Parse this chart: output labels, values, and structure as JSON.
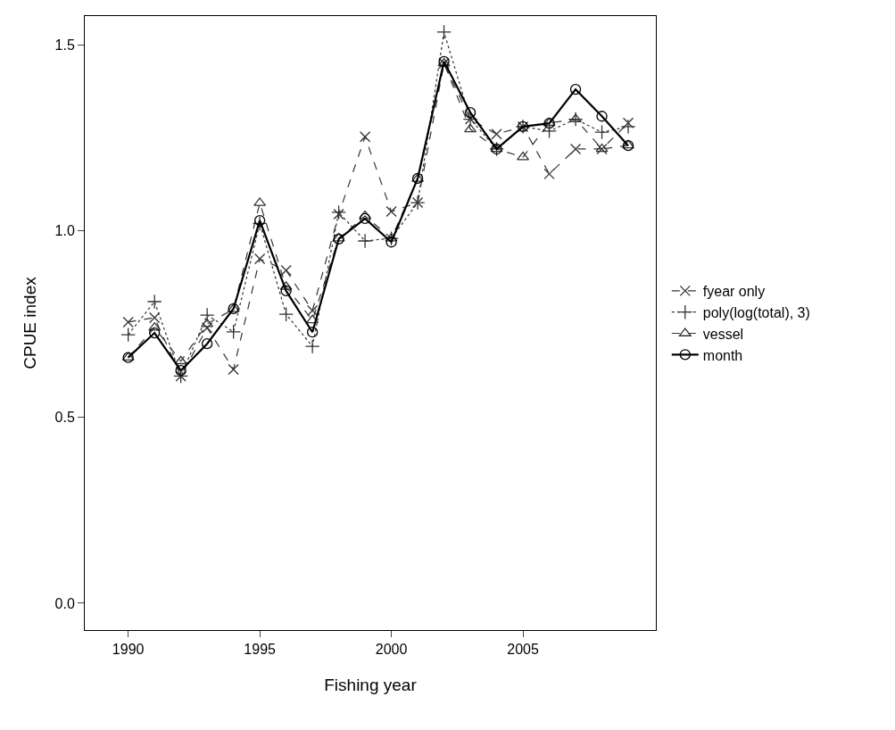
{
  "chart_data": {
    "type": "line",
    "xlabel": "Fishing year",
    "ylabel": "CPUE index",
    "x": [
      1990,
      1991,
      1992,
      1993,
      1994,
      1995,
      1996,
      1997,
      1998,
      1999,
      2000,
      2001,
      2002,
      2003,
      2004,
      2005,
      2006,
      2007,
      2008,
      2009
    ],
    "series": [
      {
        "name": "fyear only",
        "color": "#333333",
        "marker": "x",
        "line_style": "dashed",
        "values": [
          0.755,
          0.767,
          0.61,
          0.74,
          0.628,
          0.925,
          0.894,
          0.786,
          1.045,
          1.253,
          1.052,
          1.076,
          1.45,
          1.3,
          1.26,
          1.28,
          1.153,
          1.22,
          1.22,
          1.29
        ]
      },
      {
        "name": "poly(log(total), 3)",
        "color": "#333333",
        "marker": "cross",
        "line_style": "dotted",
        "values": [
          0.721,
          0.81,
          0.61,
          0.774,
          0.729,
          1.02,
          0.776,
          0.69,
          1.05,
          0.973,
          0.98,
          1.076,
          1.534,
          1.3,
          1.22,
          1.28,
          1.268,
          1.3,
          1.265,
          1.28
        ]
      },
      {
        "name": "vessel",
        "color": "#333333",
        "marker": "triangle",
        "line_style": "dashed",
        "values": [
          0.66,
          0.74,
          0.65,
          0.75,
          0.79,
          1.075,
          0.85,
          0.76,
          0.98,
          1.04,
          0.98,
          1.14,
          1.45,
          1.273,
          1.22,
          1.198,
          1.29,
          1.3,
          1.22,
          1.23
        ]
      },
      {
        "name": "month",
        "color": "#000000",
        "marker": "circle",
        "line_style": "solid",
        "values": [
          0.66,
          0.726,
          0.625,
          0.697,
          0.791,
          1.028,
          0.839,
          0.728,
          0.978,
          1.033,
          0.97,
          1.141,
          1.455,
          1.318,
          1.22,
          1.28,
          1.289,
          1.38,
          1.308,
          1.229
        ]
      }
    ],
    "xlim": [
      1988.35,
      2010.05
    ],
    "xticks": [
      1990,
      1995,
      2000,
      2005
    ],
    "ylim": [
      -0.072,
      1.577
    ],
    "yticks": [
      {
        "value": 0,
        "label": "0.0"
      },
      {
        "value": 0.5,
        "label": "0.5"
      },
      {
        "value": 1,
        "label": "1.0"
      },
      {
        "value": 1.5,
        "label": "1.5"
      }
    ],
    "legend": "right"
  }
}
